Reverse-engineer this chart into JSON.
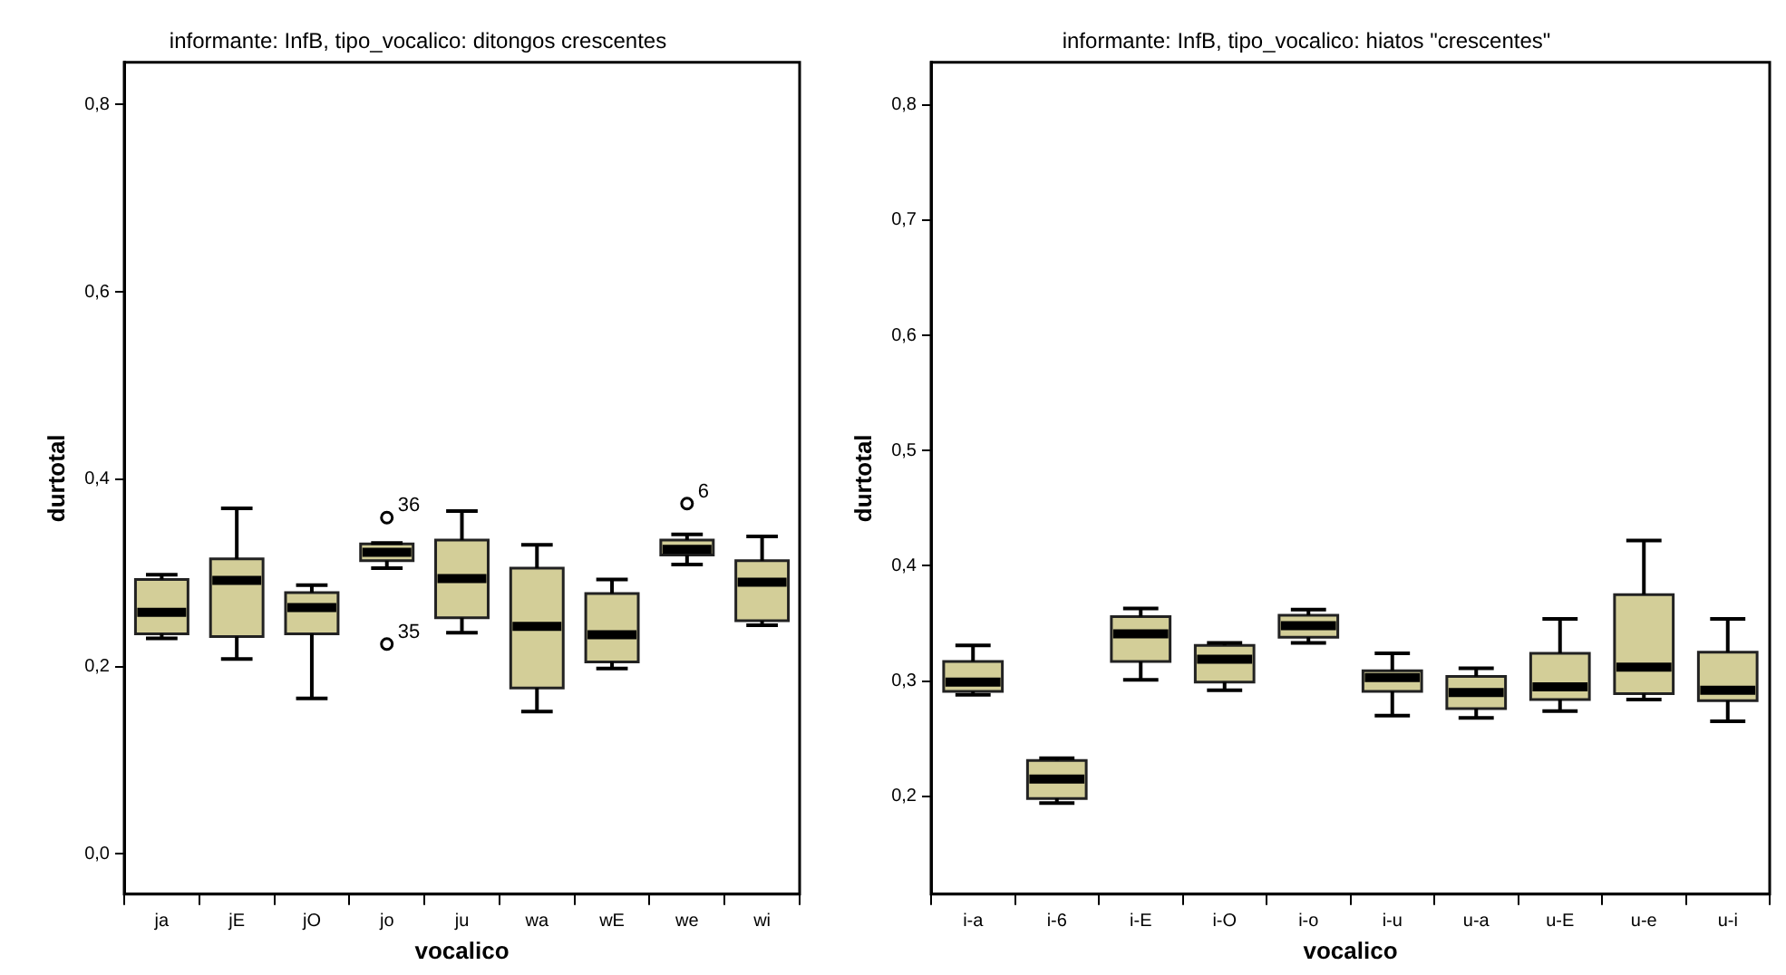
{
  "chart_data": [
    {
      "type": "box",
      "title": "informante: InfB, tipo_vocalico: ditongos crescentes",
      "xlabel": "vocalico",
      "ylabel": "durtotal",
      "color": "#d3ce98",
      "categories": [
        "ja",
        "jE",
        "jO",
        "jo",
        "ju",
        "wa",
        "wE",
        "we",
        "wi"
      ],
      "boxes": [
        {
          "low": 0.23,
          "q1": 0.235,
          "median": 0.258,
          "q3": 0.293,
          "high": 0.298
        },
        {
          "low": 0.208,
          "q1": 0.232,
          "median": 0.292,
          "q3": 0.315,
          "high": 0.369
        },
        {
          "low": 0.166,
          "q1": 0.235,
          "median": 0.263,
          "q3": 0.279,
          "high": 0.287
        },
        {
          "low": 0.305,
          "q1": 0.313,
          "median": 0.322,
          "q3": 0.331,
          "high": 0.332,
          "outliers": [
            0.359,
            0.224
          ]
        },
        {
          "low": 0.236,
          "q1": 0.252,
          "median": 0.294,
          "q3": 0.335,
          "high": 0.366
        },
        {
          "low": 0.152,
          "q1": 0.177,
          "median": 0.243,
          "q3": 0.305,
          "high": 0.33
        },
        {
          "low": 0.198,
          "q1": 0.205,
          "median": 0.234,
          "q3": 0.278,
          "high": 0.293
        },
        {
          "low": 0.309,
          "q1": 0.319,
          "median": 0.325,
          "q3": 0.335,
          "high": 0.341,
          "outliers": [
            0.374
          ]
        },
        {
          "low": 0.244,
          "q1": 0.249,
          "median": 0.29,
          "q3": 0.313,
          "high": 0.339
        }
      ],
      "annotations": [
        "36",
        "35",
        "6"
      ],
      "ylim": [
        -0.043,
        0.845
      ],
      "yticks": [
        {
          "value": 0,
          "label": "0,0"
        },
        {
          "value": 0.2,
          "label": "0,2"
        },
        {
          "value": 0.4,
          "label": "0,4"
        },
        {
          "value": 0.6,
          "label": "0,6"
        },
        {
          "value": 0.8,
          "label": "0,8"
        }
      ]
    },
    {
      "type": "box",
      "title": "informante: InfB, tipo_vocalico: hiatos \"crescentes\"",
      "xlabel": "vocalico",
      "ylabel": "durtotal",
      "color": "#d3ce98",
      "categories": [
        "i-a",
        "i-6",
        "i-E",
        "i-O",
        "i-o",
        "i-u",
        "u-a",
        "u-E",
        "u-e",
        "u-i"
      ],
      "boxes": [
        {
          "low": 0.288,
          "q1": 0.291,
          "median": 0.299,
          "q3": 0.317,
          "high": 0.331
        },
        {
          "low": 0.194,
          "q1": 0.198,
          "median": 0.215,
          "q3": 0.231,
          "high": 0.233
        },
        {
          "low": 0.301,
          "q1": 0.317,
          "median": 0.341,
          "q3": 0.356,
          "high": 0.363
        },
        {
          "low": 0.292,
          "q1": 0.299,
          "median": 0.319,
          "q3": 0.331,
          "high": 0.333
        },
        {
          "low": 0.333,
          "q1": 0.338,
          "median": 0.348,
          "q3": 0.357,
          "high": 0.362
        },
        {
          "low": 0.27,
          "q1": 0.291,
          "median": 0.303,
          "q3": 0.309,
          "high": 0.324
        },
        {
          "low": 0.268,
          "q1": 0.276,
          "median": 0.29,
          "q3": 0.304,
          "high": 0.311
        },
        {
          "low": 0.274,
          "q1": 0.284,
          "median": 0.295,
          "q3": 0.324,
          "high": 0.354
        },
        {
          "low": 0.284,
          "q1": 0.289,
          "median": 0.312,
          "q3": 0.375,
          "high": 0.422
        },
        {
          "low": 0.265,
          "q1": 0.283,
          "median": 0.292,
          "q3": 0.325,
          "high": 0.354
        }
      ],
      "ylim": [
        0.115,
        0.837
      ],
      "yticks": [
        {
          "value": 0.2,
          "label": "0,2"
        },
        {
          "value": 0.3,
          "label": "0,3"
        },
        {
          "value": 0.4,
          "label": "0,4"
        },
        {
          "value": 0.5,
          "label": "0,5"
        },
        {
          "value": 0.6,
          "label": "0,6"
        },
        {
          "value": 0.7,
          "label": "0,7"
        },
        {
          "value": 0.8,
          "label": "0,8"
        }
      ]
    }
  ]
}
